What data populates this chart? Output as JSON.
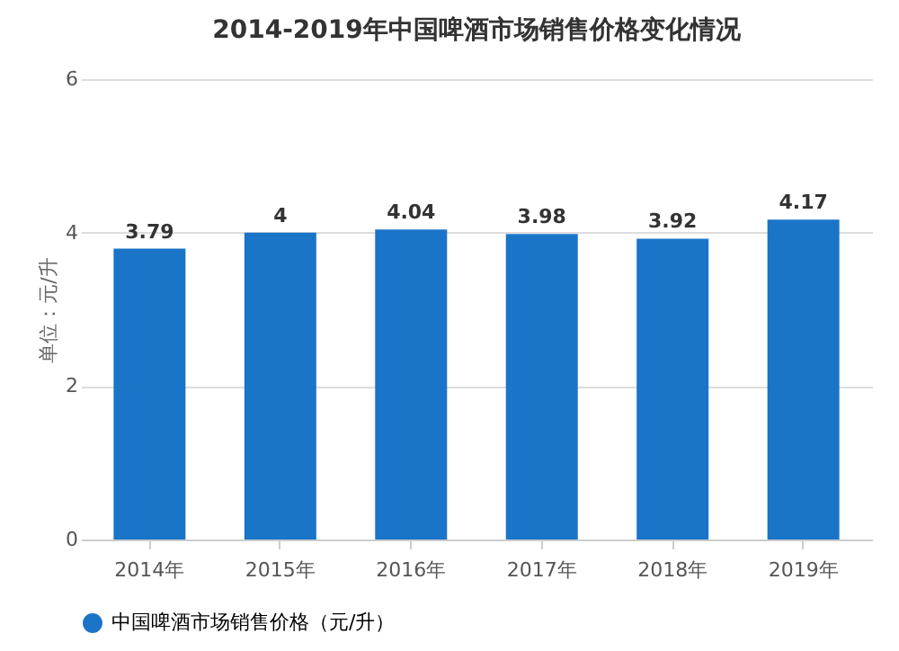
{
  "chart_data": {
    "type": "bar",
    "title": "2014-2019年中国啤酒市场销售价格变化情况",
    "ylabel": "单位：元/升",
    "categories": [
      "2014年",
      "2015年",
      "2016年",
      "2017年",
      "2018年",
      "2019年"
    ],
    "series": [
      {
        "name": "中国啤酒市场销售价格（元/升）",
        "color": "#1a74c8",
        "values": [
          3.79,
          4,
          4.04,
          3.98,
          3.92,
          4.17
        ]
      }
    ],
    "ylim": [
      0,
      6
    ],
    "yticks": [
      0,
      2,
      4,
      6
    ],
    "grid": "y",
    "legend": "bottom",
    "data_labels": true
  }
}
